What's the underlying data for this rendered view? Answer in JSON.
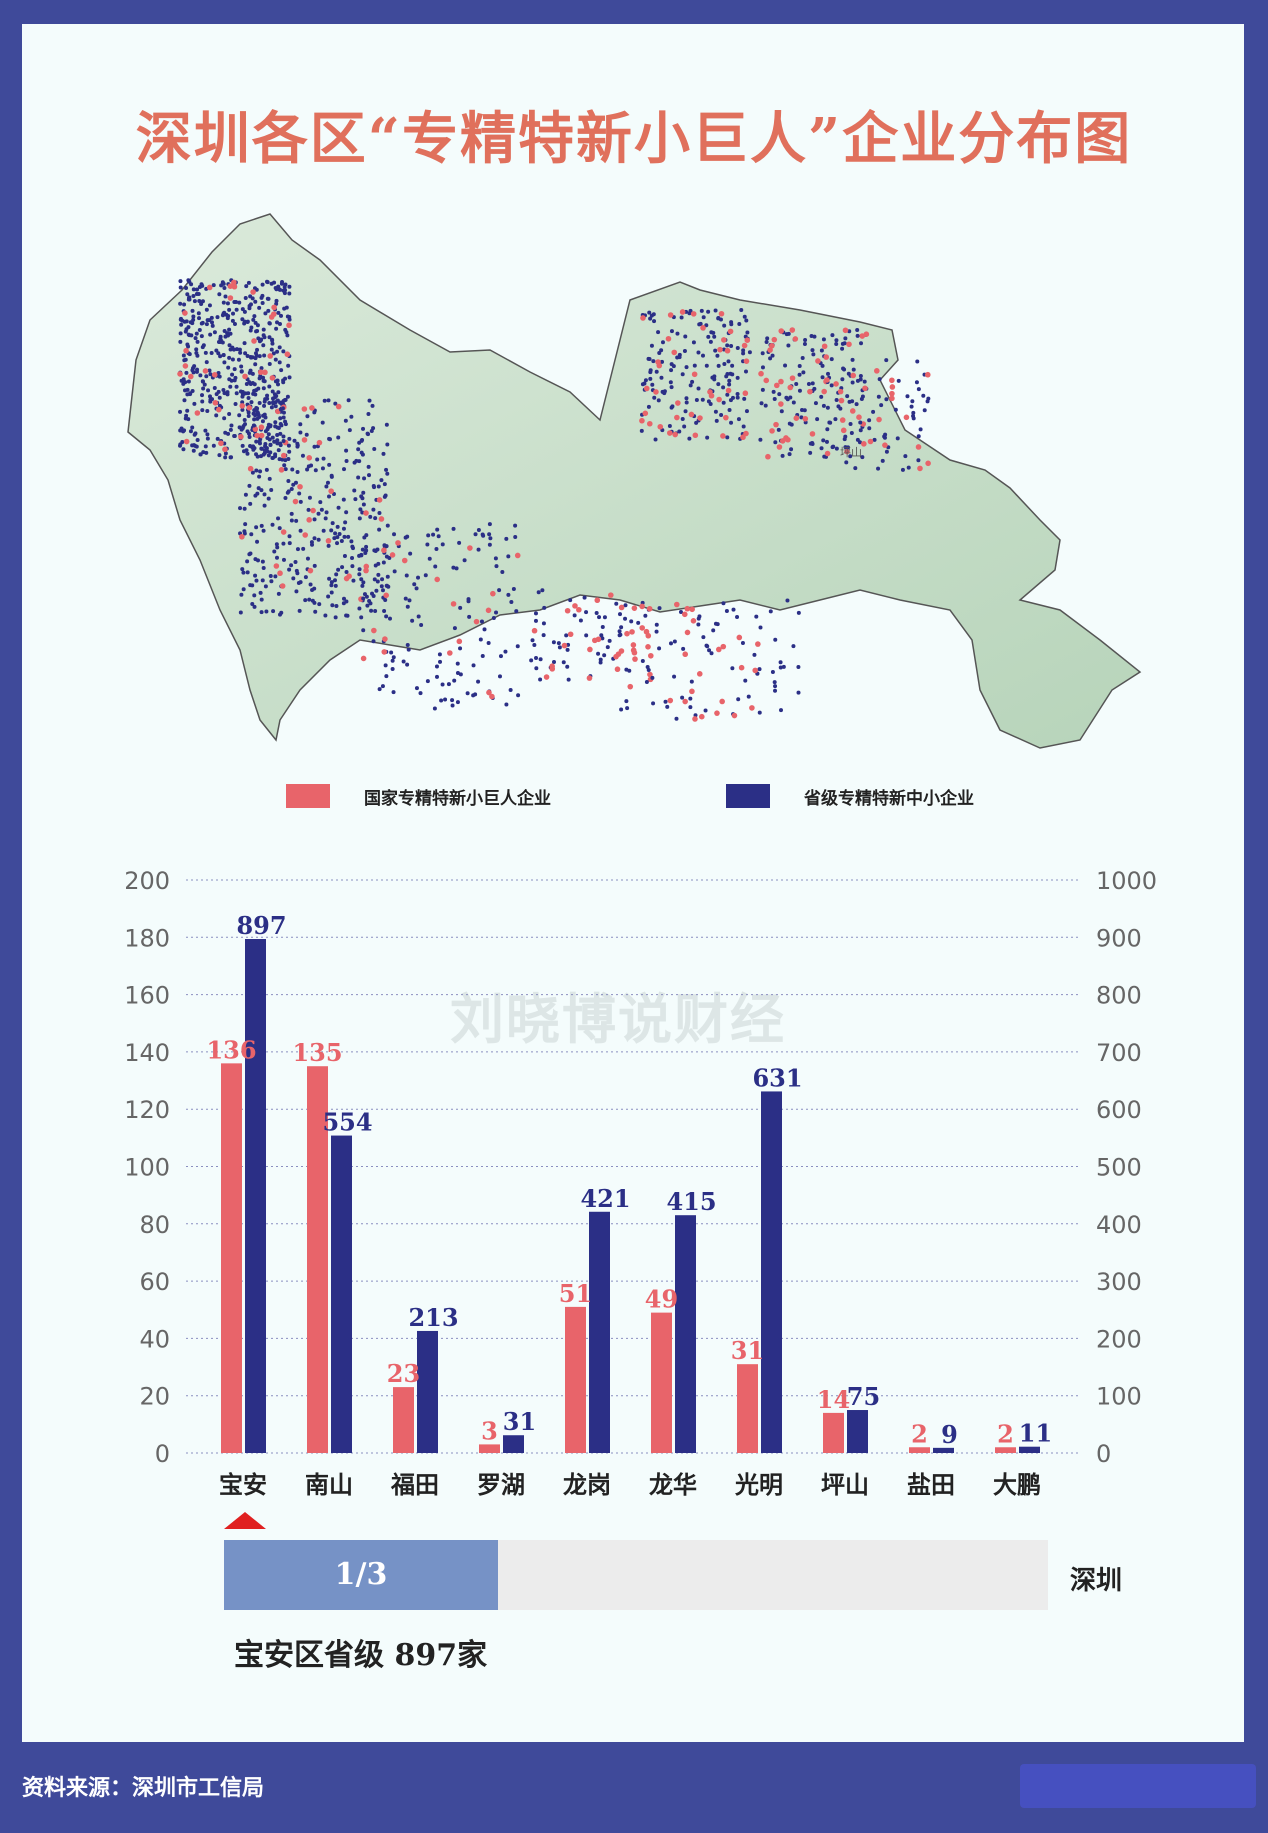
{
  "title": "深圳各区“专精特新小巨人”企业分布图",
  "map": {
    "district_labels": [
      "坪山"
    ]
  },
  "legend": [
    {
      "label": "国家专精特新小巨人企业",
      "color": "#e8646a"
    },
    {
      "label": "省级专精特新中小企业",
      "color": "#2b2f86"
    }
  ],
  "watermark": "刘晓博说财经",
  "chart_data": {
    "type": "bar",
    "categories": [
      "宝安",
      "南山",
      "福田",
      "罗湖",
      "龙岗",
      "龙华",
      "光明",
      "坪山",
      "盐田",
      "大鹏"
    ],
    "series": [
      {
        "name": "国家专精特新小巨人企业",
        "axis": "left",
        "color": "#e8646a",
        "values": [
          136,
          135,
          23,
          3,
          51,
          49,
          31,
          14,
          2,
          2
        ]
      },
      {
        "name": "省级专精特新中小企业",
        "axis": "right",
        "color": "#2b2f86",
        "values": [
          897,
          554,
          213,
          31,
          421,
          415,
          631,
          75,
          9,
          11
        ]
      }
    ],
    "left_axis": {
      "range": [
        0,
        200
      ],
      "ticks": [
        "0",
        "20",
        "40",
        "60",
        "80",
        "100",
        "120",
        "140",
        "160",
        "180",
        "200"
      ]
    },
    "right_axis": {
      "range": [
        0,
        1000
      ],
      "ticks": [
        "0",
        "100",
        "200",
        "300",
        "400",
        "500",
        "600",
        "700",
        "800",
        "900",
        "1000"
      ]
    },
    "grid": "horizontal dotted",
    "legend_position": "top"
  },
  "selection": {
    "highlighted_category": "宝安",
    "share_text": "1/3",
    "share_fraction": 0.333,
    "region_label": "深圳",
    "note": "宝安区省级 897家"
  },
  "source": "资料来源：深圳市工信局"
}
